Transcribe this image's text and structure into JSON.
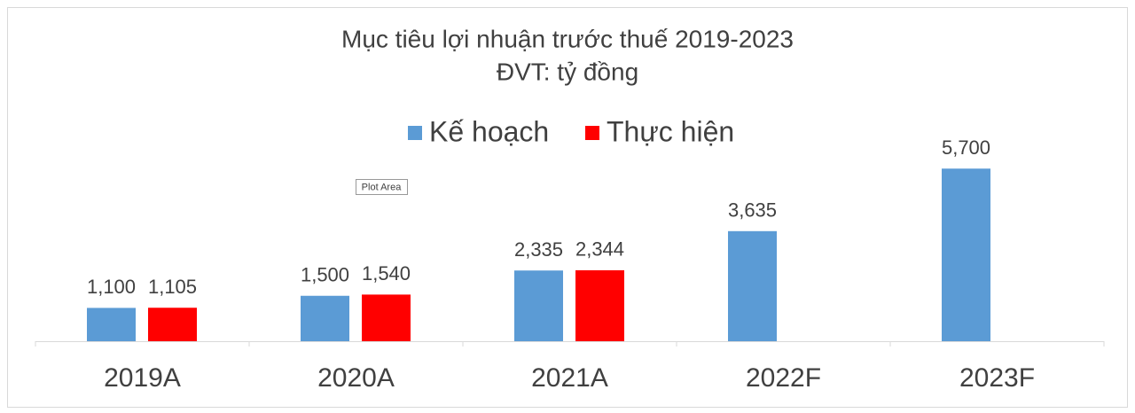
{
  "chart_data": {
    "type": "bar",
    "title": "Mục tiêu lợi nhuận trước thuế 2019-2023",
    "subtitle": "ĐVT: tỷ đồng",
    "annotation": "Plot Area",
    "categories": [
      "2019A",
      "2020A",
      "2021A",
      "2022F",
      "2023F"
    ],
    "series": [
      {
        "name": "Kế hoạch",
        "color": "#5b9bd5",
        "values": [
          1100,
          1500,
          2335,
          3635,
          5700
        ],
        "value_labels": [
          "1,100",
          "1,500",
          "2,335",
          "3,635",
          "5,700"
        ]
      },
      {
        "name": "Thực hiện",
        "color": "#ff0000",
        "values": [
          1105,
          1540,
          2344,
          null,
          null
        ],
        "value_labels": [
          "1,105",
          "1,540",
          "2,344",
          null,
          null
        ]
      }
    ],
    "ylim": [
      0,
      6000
    ],
    "legend": "top"
  }
}
